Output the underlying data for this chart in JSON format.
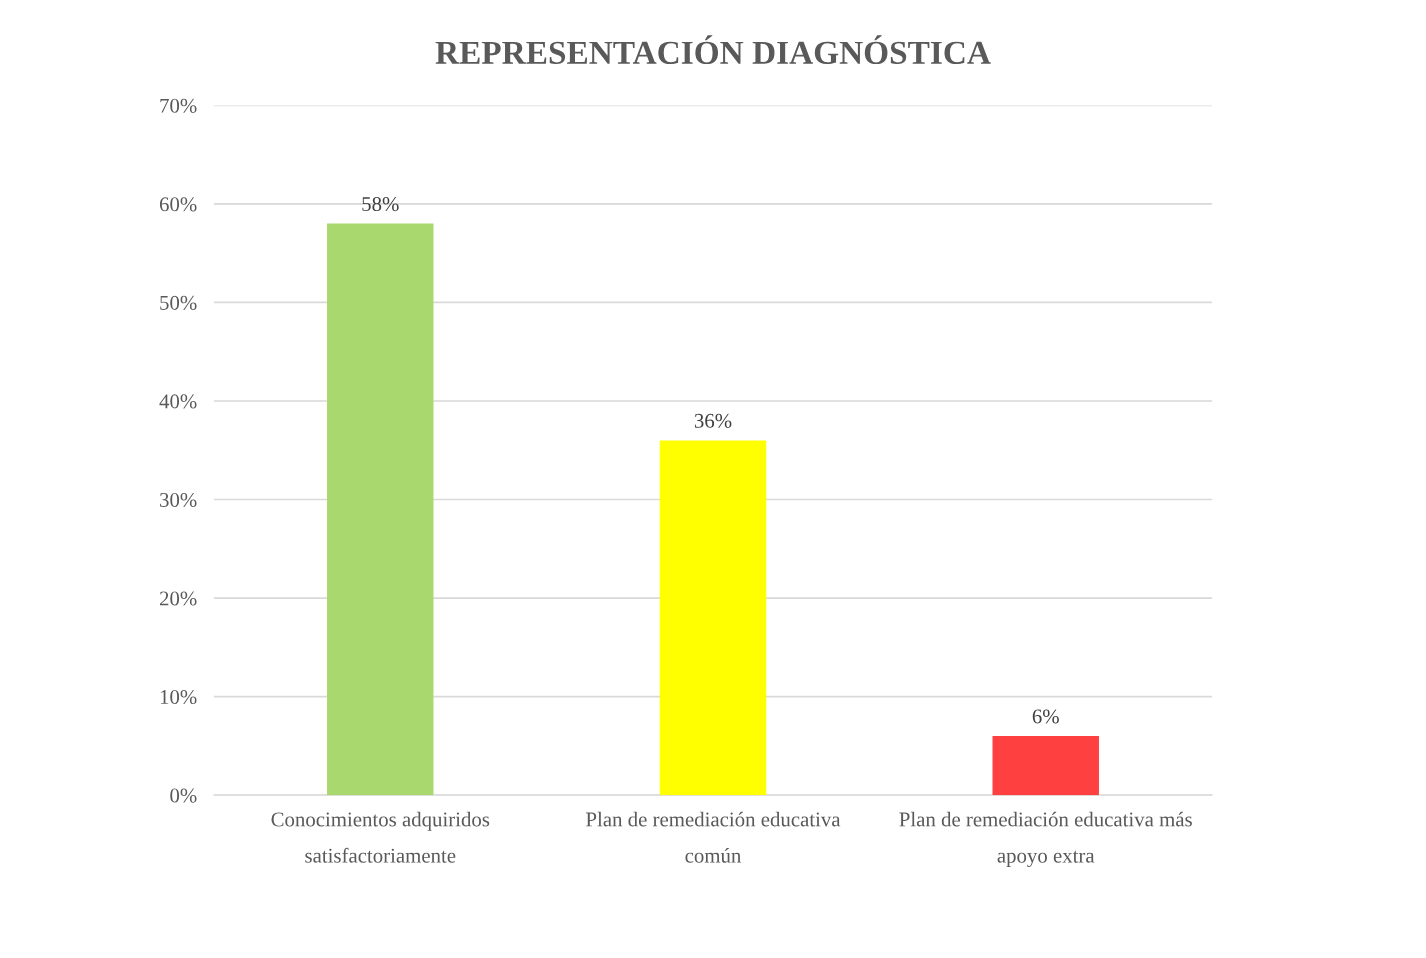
{
  "chart_data": {
    "type": "bar",
    "title": "REPRESENTACIÓN DIAGNÓSTICA",
    "categories": [
      "Conocimientos adquiridos\nsatisfactoriamente",
      "Plan de remediación educativa\ncomún",
      "Plan de remediación educativa más\napoyo extra"
    ],
    "values": [
      58,
      36,
      6
    ],
    "colors": [
      "#a9d96e",
      "#ffff00",
      "#ff4040"
    ],
    "value_labels": [
      "58%",
      "36%",
      "6%"
    ],
    "ylim": [
      0,
      70
    ],
    "yticks": [
      {
        "value": 0,
        "label": "0%"
      },
      {
        "value": 10,
        "label": "10%"
      },
      {
        "value": 20,
        "label": "20%"
      },
      {
        "value": 30,
        "label": "30%"
      },
      {
        "value": 40,
        "label": "40%"
      },
      {
        "value": 50,
        "label": "50%"
      },
      {
        "value": 60,
        "label": "60%"
      },
      {
        "value": 70,
        "label": "70%"
      }
    ],
    "grid": "y",
    "legend": false
  }
}
